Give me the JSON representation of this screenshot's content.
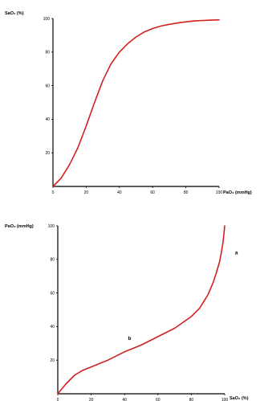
{
  "chart_data": [
    {
      "type": "line",
      "title": "",
      "ylabel": "SaO2 (%)",
      "xlabel": "PaO2 (mmHg)",
      "xlim": [
        0,
        100
      ],
      "ylim": [
        0,
        100
      ],
      "xticks": [
        "0",
        "20",
        "40",
        "60",
        "80",
        "100"
      ],
      "yticks": [
        "20",
        "40",
        "60",
        "80",
        "100"
      ],
      "grid": false,
      "series": [
        {
          "color": "#d42020",
          "x": [
            0,
            5,
            10,
            15,
            20,
            25,
            30,
            35,
            40,
            45,
            50,
            55,
            60,
            65,
            70,
            75,
            80,
            85,
            90,
            95,
            100
          ],
          "y": [
            0,
            5,
            13,
            23,
            36,
            50,
            63,
            73,
            80,
            85,
            89,
            92,
            94,
            95.5,
            96.5,
            97.3,
            98,
            98.5,
            98.8,
            99,
            99.2
          ]
        }
      ]
    },
    {
      "type": "line",
      "title": "",
      "ylabel": "PaO2 (mmHg)",
      "xlabel": "SaO2 (%)",
      "xlim": [
        0,
        100
      ],
      "ylim": [
        0,
        100
      ],
      "xticks": [
        "0",
        "20",
        "40",
        "60",
        "80",
        "100"
      ],
      "yticks": [
        "20",
        "40",
        "60",
        "80",
        "100"
      ],
      "grid": false,
      "annotations": [
        {
          "text": "a",
          "x": 107,
          "y": 83
        },
        {
          "text": "b",
          "x": 43,
          "y": 32
        }
      ],
      "series": [
        {
          "color": "#d42020",
          "x": [
            0,
            5,
            10,
            15,
            20,
            30,
            40,
            50,
            60,
            70,
            80,
            85,
            90,
            93,
            95,
            97,
            98,
            99,
            100
          ],
          "y": [
            0,
            6,
            11,
            14,
            16,
            20,
            25,
            29,
            34,
            39,
            46,
            51,
            59,
            66,
            72,
            79,
            84,
            90,
            100
          ]
        }
      ]
    }
  ]
}
